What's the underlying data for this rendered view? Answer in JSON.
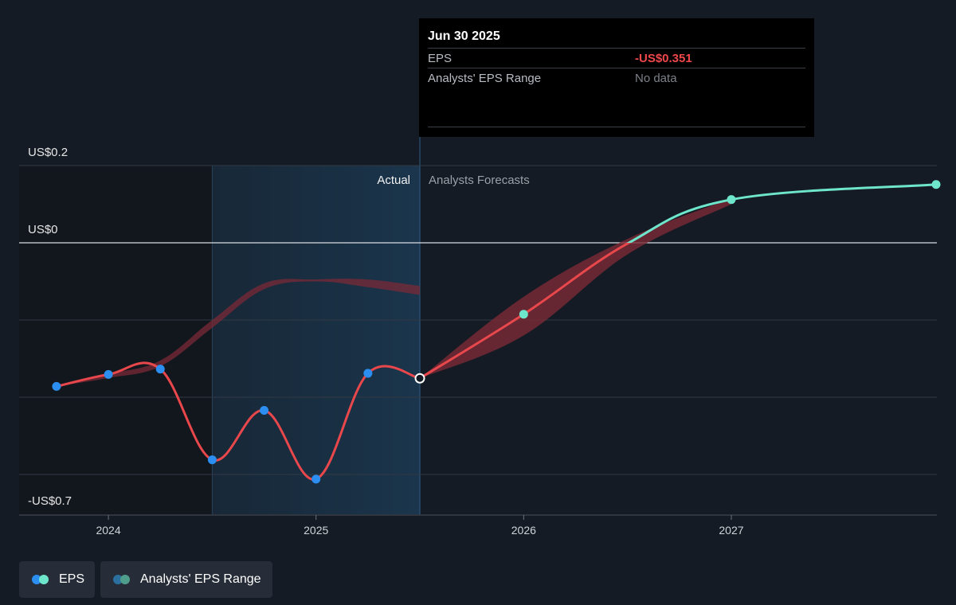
{
  "tooltip": {
    "date": "Jun 30 2025",
    "rows": [
      {
        "label": "EPS",
        "value": "-US$0.351"
      },
      {
        "label": "Analysts' EPS Range",
        "value": "No data"
      }
    ]
  },
  "legend": [
    {
      "label": "EPS",
      "colors": [
        "#2b8ef0",
        "#6ee6cc"
      ]
    },
    {
      "label": "Analysts' EPS Range",
      "colors": [
        "#2a6f9e",
        "#4f9e8c"
      ]
    }
  ],
  "chart_data": {
    "type": "line",
    "y_tick_labels": [
      {
        "value": 0.2,
        "label": "US$0.2"
      },
      {
        "value": 0.0,
        "label": "US$0"
      },
      {
        "value": -0.7,
        "label": "-US$0.7"
      }
    ],
    "ylim": [
      -0.7,
      0.2
    ],
    "gridlines_at": [
      0.2,
      0.0,
      -0.2,
      -0.4,
      -0.6
    ],
    "x_ticks": [
      {
        "value": 2024.0,
        "label": "2024"
      },
      {
        "value": 2025.0,
        "label": "2025"
      },
      {
        "value": 2026.0,
        "label": "2026"
      },
      {
        "value": 2027.0,
        "label": "2027"
      }
    ],
    "xlim": [
      2023.57,
      2027.99
    ],
    "sections": {
      "actual_label": "Actual",
      "forecast_label": "Analysts Forecasts",
      "shaded_past_start": 2024.5,
      "divider": 2025.5
    },
    "actual_eps": {
      "name": "EPS",
      "points": [
        {
          "x": 2023.75,
          "y": -0.372
        },
        {
          "x": 2024.0,
          "y": -0.341
        },
        {
          "x": 2024.25,
          "y": -0.327
        },
        {
          "x": 2024.5,
          "y": -0.562
        },
        {
          "x": 2024.75,
          "y": -0.434
        },
        {
          "x": 2025.0,
          "y": -0.612
        },
        {
          "x": 2025.25,
          "y": -0.338
        },
        {
          "x": 2025.5,
          "y": -0.351
        }
      ]
    },
    "forecast_eps": {
      "points": [
        {
          "x": 2025.5,
          "y": -0.351
        },
        {
          "x": 2026.0,
          "y": -0.185
        },
        {
          "x": 2026.5,
          "y": -0.002
        },
        {
          "x": 2027.0,
          "y": 0.112
        },
        {
          "x": 2027.99,
          "y": 0.151
        }
      ],
      "marked_points": [
        2026.0,
        2027.0,
        2027.99
      ]
    },
    "past_estimate_range": {
      "x": [
        2023.75,
        2024.0,
        2024.25,
        2024.5,
        2024.75,
        2025.0,
        2025.25,
        2025.5
      ],
      "low": [
        -0.372,
        -0.35,
        -0.32,
        -0.22,
        -0.12,
        -0.1,
        -0.115,
        -0.135
      ],
      "high": [
        -0.372,
        -0.34,
        -0.305,
        -0.2,
        -0.105,
        -0.095,
        -0.095,
        -0.112
      ]
    },
    "forecast_range": {
      "x": [
        2025.5,
        2026.0,
        2026.5,
        2027.0
      ],
      "low": [
        -0.351,
        -0.24,
        -0.03,
        0.1
      ],
      "high": [
        -0.351,
        -0.14,
        0.01,
        0.115
      ]
    }
  }
}
